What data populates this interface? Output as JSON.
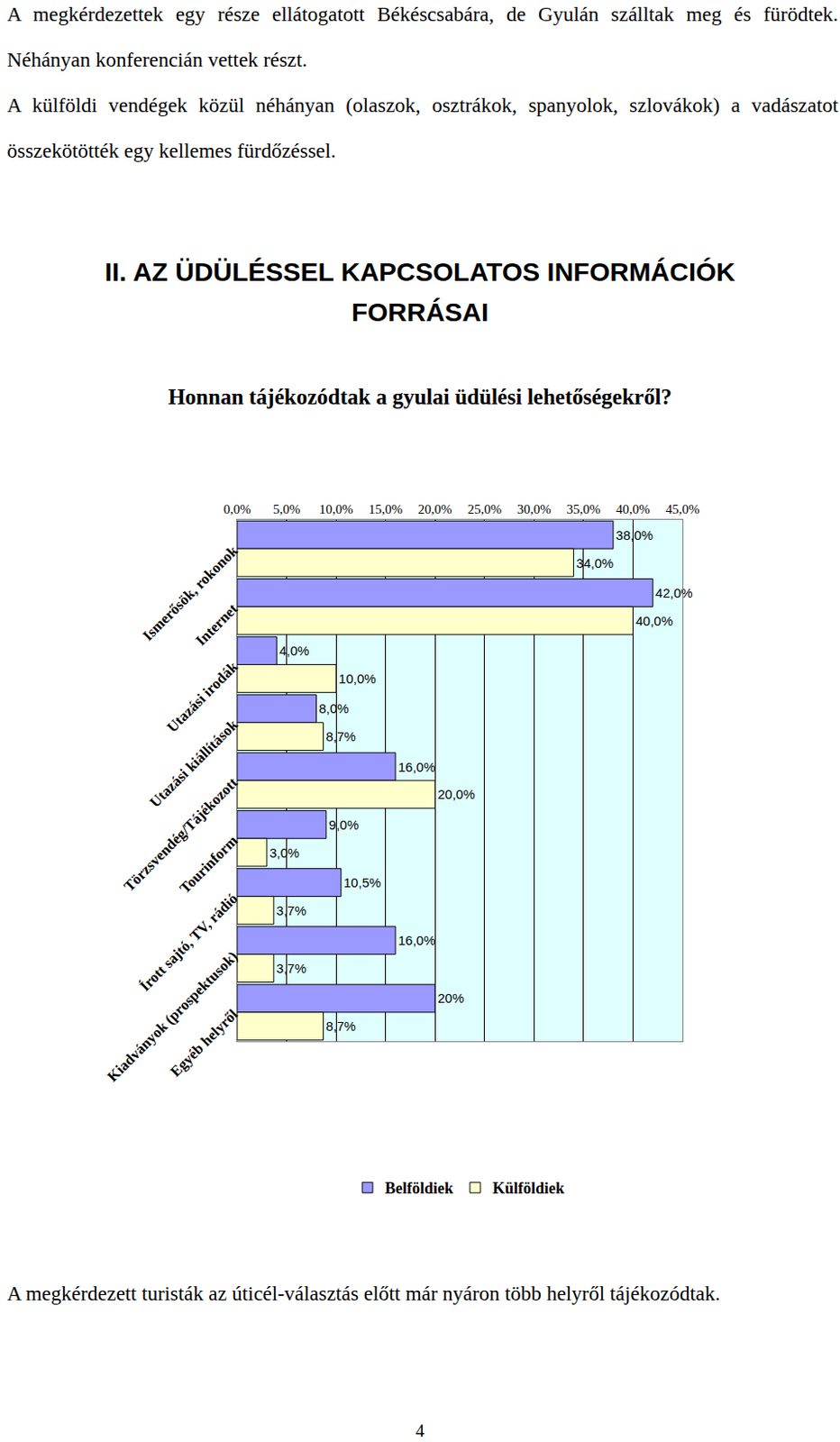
{
  "paragraphs_top": [
    "A megkérdezettek egy része ellátogatott Békéscsabára, de Gyulán szálltak meg és fürödtek. Néhányan konferencián vettek részt.",
    "A külföldi vendégek közül néhányan (olaszok, osztrákok, spanyolok, szlovákok) a vadászatot összekötötték egy kellemes fürdőzéssel."
  ],
  "heading": [
    "II. AZ ÜDÜLÉSSEL KAPCSOLATOS INFORMÁCIÓK",
    "FORRÁSAI"
  ],
  "question": "Honnan tájékozódtak a gyulai üdülési lehetőségekről?",
  "chart_data": {
    "type": "bar",
    "orientation": "horizontal",
    "categories": [
      "Ismerősök, rokonok",
      "Internet",
      "Utazási irodák",
      "Utazási kiállítások",
      "Törzsvendég/Tájékozott",
      "Tourinform",
      "Írott sajtó, TV, rádió",
      "Kiadványok (prospektusok)",
      "Egyéb helyről"
    ],
    "series": [
      {
        "name": "Belföldiek",
        "color": "#9999ff",
        "values": [
          38,
          42,
          4,
          8,
          16,
          9,
          10.5,
          16,
          20
        ],
        "value_labels": [
          "38,0%",
          "42,0%",
          "4,0%",
          "8,0%",
          "16,0%",
          "9,0%",
          "10,5%",
          "16,0%",
          "20%"
        ]
      },
      {
        "name": "Külföldiek",
        "color": "#ffffcc",
        "values": [
          34,
          40,
          10,
          8.7,
          20,
          3,
          3.7,
          3.7,
          8.7
        ],
        "value_labels": [
          "34,0%",
          "40,0%",
          "10,0%",
          "8,7%",
          "20,0%",
          "3,0%",
          "3,7%",
          "3,7%",
          "8,7%"
        ]
      }
    ],
    "xlim": [
      0,
      45
    ],
    "xticks": [
      {
        "value": 0,
        "label": "0,0%"
      },
      {
        "value": 5,
        "label": "5,0%"
      },
      {
        "value": 10,
        "label": "10,0%"
      },
      {
        "value": 15,
        "label": "15,0%"
      },
      {
        "value": 20,
        "label": "20,0%"
      },
      {
        "value": 25,
        "label": "25,0%"
      },
      {
        "value": 30,
        "label": "30,0%"
      },
      {
        "value": 35,
        "label": "35,0%"
      },
      {
        "value": 40,
        "label": "40,0%"
      },
      {
        "value": 45,
        "label": "45,0%"
      }
    ],
    "grid": true,
    "data_labels": true,
    "legend": "bottom"
  },
  "paragraph_bottom": "A megkérdezett turisták az úticél-választás előtt már nyáron több helyről tájékozódtak.",
  "page_number": "4"
}
